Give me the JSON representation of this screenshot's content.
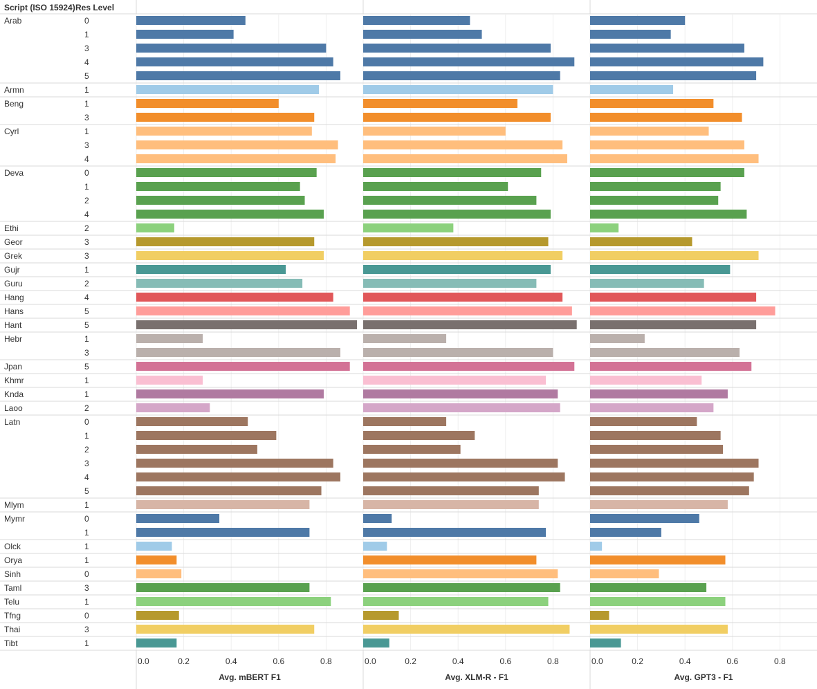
{
  "chart_data": {
    "type": "bar",
    "orientation": "horizontal",
    "headers": {
      "script": "Script (ISO 15924)",
      "res_level": "Res Level"
    },
    "x_ticks": [
      "0.0",
      "0.2",
      "0.4",
      "0.6",
      "0.8"
    ],
    "panels": [
      {
        "name": "mBERT",
        "title": "Avg. mBERT  F1",
        "xlim": [
          0,
          0.95
        ]
      },
      {
        "name": "XLM-R",
        "title": "Avg. XLM-R - F1",
        "xlim": [
          0,
          0.95
        ]
      },
      {
        "name": "GPT3",
        "title": "Avg. GPT3 - F1",
        "xlim": [
          0,
          0.95
        ]
      }
    ],
    "groups": [
      {
        "script": "Arab",
        "color": "#4e79a7",
        "rows": [
          {
            "res": "0",
            "values": [
              0.46,
              0.45,
              0.4
            ]
          },
          {
            "res": "1",
            "values": [
              0.41,
              0.5,
              0.34
            ]
          },
          {
            "res": "3",
            "values": [
              0.8,
              0.79,
              0.65
            ]
          },
          {
            "res": "4",
            "values": [
              0.83,
              0.89,
              0.73
            ]
          },
          {
            "res": "5",
            "values": [
              0.86,
              0.83,
              0.7
            ]
          }
        ]
      },
      {
        "script": "Armn",
        "color": "#a0cbe8",
        "rows": [
          {
            "res": "1",
            "values": [
              0.77,
              0.8,
              0.35
            ]
          }
        ]
      },
      {
        "script": "Beng",
        "color": "#f28e2b",
        "rows": [
          {
            "res": "1",
            "values": [
              0.6,
              0.65,
              0.52
            ]
          },
          {
            "res": "3",
            "values": [
              0.75,
              0.79,
              0.64
            ]
          }
        ]
      },
      {
        "script": "Cyrl",
        "color": "#ffbe7d",
        "rows": [
          {
            "res": "1",
            "values": [
              0.74,
              0.6,
              0.5
            ]
          },
          {
            "res": "3",
            "values": [
              0.85,
              0.84,
              0.65
            ]
          },
          {
            "res": "4",
            "values": [
              0.84,
              0.86,
              0.71
            ]
          }
        ]
      },
      {
        "script": "Deva",
        "color": "#59a14f",
        "rows": [
          {
            "res": "0",
            "values": [
              0.76,
              0.75,
              0.65
            ]
          },
          {
            "res": "1",
            "values": [
              0.69,
              0.61,
              0.55
            ]
          },
          {
            "res": "2",
            "values": [
              0.71,
              0.73,
              0.54
            ]
          },
          {
            "res": "4",
            "values": [
              0.79,
              0.79,
              0.66
            ]
          }
        ]
      },
      {
        "script": "Ethi",
        "color": "#8cd17d",
        "rows": [
          {
            "res": "2",
            "values": [
              0.16,
              0.38,
              0.12
            ]
          }
        ]
      },
      {
        "script": "Geor",
        "color": "#b6992d",
        "rows": [
          {
            "res": "3",
            "values": [
              0.75,
              0.78,
              0.43
            ]
          }
        ]
      },
      {
        "script": "Grek",
        "color": "#f1ce63",
        "rows": [
          {
            "res": "3",
            "values": [
              0.79,
              0.84,
              0.71
            ]
          }
        ]
      },
      {
        "script": "Gujr",
        "color": "#499894",
        "rows": [
          {
            "res": "1",
            "values": [
              0.63,
              0.79,
              0.59
            ]
          }
        ]
      },
      {
        "script": "Guru",
        "color": "#86bcb6",
        "rows": [
          {
            "res": "2",
            "values": [
              0.7,
              0.73,
              0.48
            ]
          }
        ]
      },
      {
        "script": "Hang",
        "color": "#e15759",
        "rows": [
          {
            "res": "4",
            "values": [
              0.83,
              0.84,
              0.7
            ]
          }
        ]
      },
      {
        "script": "Hans",
        "color": "#ff9d9a",
        "rows": [
          {
            "res": "5",
            "values": [
              0.9,
              0.88,
              0.78
            ]
          }
        ]
      },
      {
        "script": "Hant",
        "color": "#79706e",
        "rows": [
          {
            "res": "5",
            "values": [
              0.93,
              0.9,
              0.7
            ]
          }
        ]
      },
      {
        "script": "Hebr",
        "color": "#bab0ac",
        "rows": [
          {
            "res": "1",
            "values": [
              0.28,
              0.35,
              0.23
            ]
          },
          {
            "res": "3",
            "values": [
              0.86,
              0.8,
              0.63
            ]
          }
        ]
      },
      {
        "script": "Jpan",
        "color": "#d37295",
        "rows": [
          {
            "res": "5",
            "values": [
              0.9,
              0.89,
              0.68
            ]
          }
        ]
      },
      {
        "script": "Khmr",
        "color": "#fabfd2",
        "rows": [
          {
            "res": "1",
            "values": [
              0.28,
              0.77,
              0.47
            ]
          }
        ]
      },
      {
        "script": "Knda",
        "color": "#b07aa1",
        "rows": [
          {
            "res": "1",
            "values": [
              0.79,
              0.82,
              0.58
            ]
          }
        ]
      },
      {
        "script": "Laoo",
        "color": "#d4a6c8",
        "rows": [
          {
            "res": "2",
            "values": [
              0.31,
              0.83,
              0.52
            ]
          }
        ]
      },
      {
        "script": "Latn",
        "color": "#9d7660",
        "rows": [
          {
            "res": "0",
            "values": [
              0.47,
              0.35,
              0.45
            ]
          },
          {
            "res": "1",
            "values": [
              0.59,
              0.47,
              0.55
            ]
          },
          {
            "res": "2",
            "values": [
              0.51,
              0.41,
              0.56
            ]
          },
          {
            "res": "3",
            "values": [
              0.83,
              0.82,
              0.71
            ]
          },
          {
            "res": "4",
            "values": [
              0.86,
              0.85,
              0.69
            ]
          },
          {
            "res": "5",
            "values": [
              0.78,
              0.74,
              0.67
            ]
          }
        ]
      },
      {
        "script": "Mlym",
        "color": "#d7b5a6",
        "rows": [
          {
            "res": "1",
            "values": [
              0.73,
              0.74,
              0.58
            ]
          }
        ]
      },
      {
        "script": "Mymr",
        "color": "#4e79a7",
        "rows": [
          {
            "res": "0",
            "values": [
              0.35,
              0.12,
              0.46
            ]
          },
          {
            "res": "1",
            "values": [
              0.73,
              0.77,
              0.3
            ]
          }
        ]
      },
      {
        "script": "Olck",
        "color": "#a0cbe8",
        "rows": [
          {
            "res": "1",
            "values": [
              0.15,
              0.1,
              0.05
            ]
          }
        ]
      },
      {
        "script": "Orya",
        "color": "#f28e2b",
        "rows": [
          {
            "res": "1",
            "values": [
              0.17,
              0.73,
              0.57
            ]
          }
        ]
      },
      {
        "script": "Sinh",
        "color": "#ffbe7d",
        "rows": [
          {
            "res": "0",
            "values": [
              0.19,
              0.82,
              0.29
            ]
          }
        ]
      },
      {
        "script": "Taml",
        "color": "#59a14f",
        "rows": [
          {
            "res": "3",
            "values": [
              0.73,
              0.83,
              0.49
            ]
          }
        ]
      },
      {
        "script": "Telu",
        "color": "#8cd17d",
        "rows": [
          {
            "res": "1",
            "values": [
              0.82,
              0.78,
              0.57
            ]
          }
        ]
      },
      {
        "script": "Tfng",
        "color": "#b6992d",
        "rows": [
          {
            "res": "0",
            "values": [
              0.18,
              0.15,
              0.08
            ]
          }
        ]
      },
      {
        "script": "Thai",
        "color": "#f1ce63",
        "rows": [
          {
            "res": "3",
            "values": [
              0.75,
              0.87,
              0.58
            ]
          }
        ]
      },
      {
        "script": "Tibt",
        "color": "#499894",
        "rows": [
          {
            "res": "1",
            "values": [
              0.17,
              0.11,
              0.13
            ]
          }
        ]
      }
    ]
  }
}
